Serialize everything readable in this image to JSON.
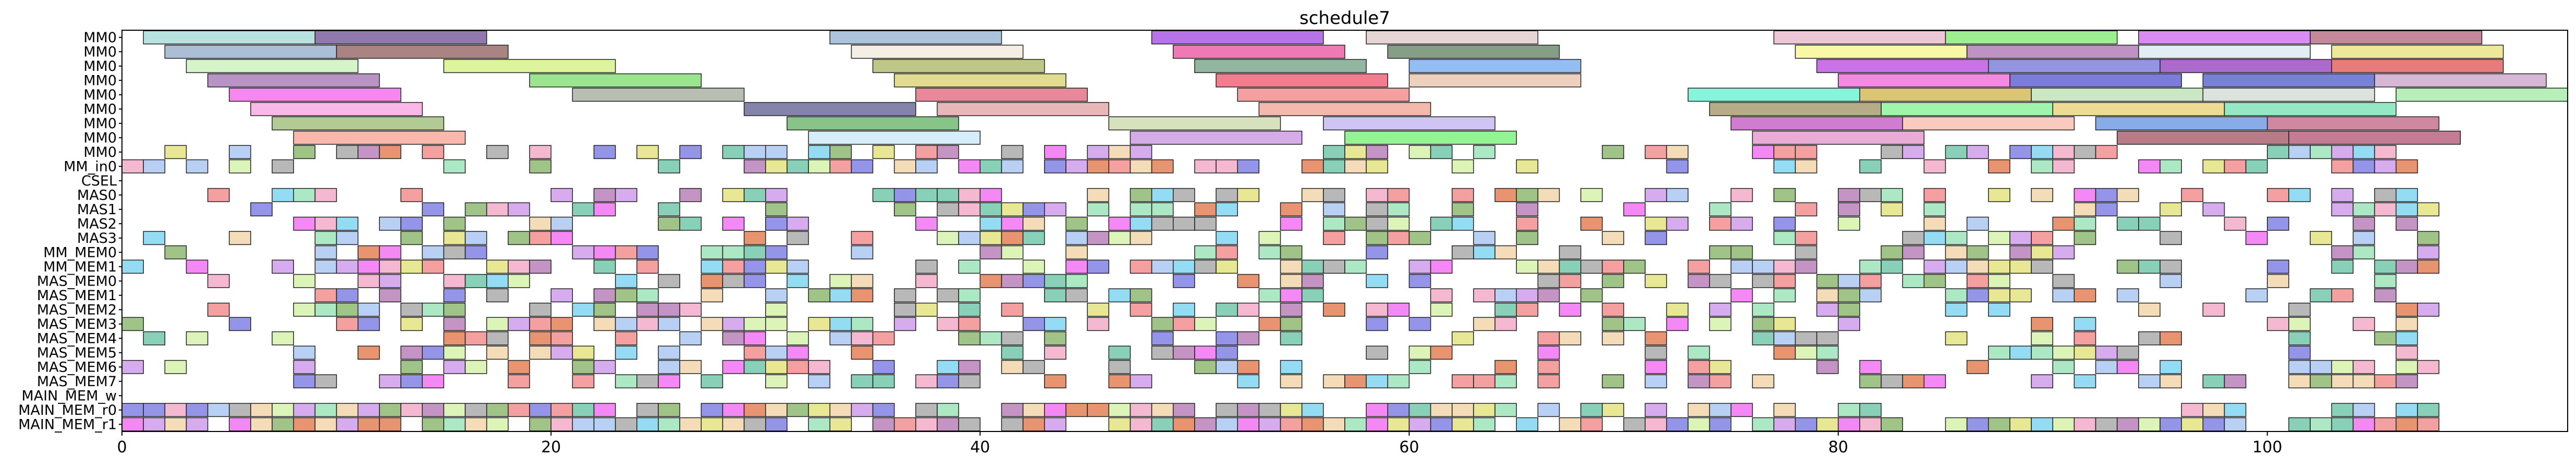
{
  "chart_data": {
    "type": "gantt",
    "title": "schedule7",
    "xlabel": "",
    "ylabel": "",
    "xlim": [
      0,
      114
    ],
    "xticks": [
      0,
      20,
      40,
      60,
      80,
      100
    ],
    "grid": false,
    "rows": [
      "MM0",
      "MM0",
      "MM0",
      "MM0",
      "MM0",
      "MM0",
      "MM0",
      "MM0",
      "MM0",
      "MM_in0",
      "CSEL",
      "MAS0",
      "MAS1",
      "MAS2",
      "MAS3",
      "MM_MEM0",
      "MM_MEM1",
      "MAS_MEM0",
      "MAS_MEM1",
      "MAS_MEM2",
      "MAS_MEM3",
      "MAS_MEM4",
      "MAS_MEM5",
      "MAS_MEM6",
      "MAS_MEM7",
      "MAIN_MEM_w",
      "MAIN_MEM_r0",
      "MAIN_MEM_r1"
    ],
    "long_tasks": [
      [
        [
          1,
          9,
          "#9fd8d4"
        ],
        [
          9,
          17,
          "#6b4e91"
        ],
        [
          33,
          41,
          "#8fb0d0"
        ],
        [
          48,
          56,
          "#9f45e0"
        ],
        [
          58,
          66,
          "#dcc7c7"
        ],
        [
          77,
          85,
          "#e8b4c8"
        ],
        [
          85,
          93,
          "#7ee86e"
        ],
        [
          94,
          102,
          "#cc66ee"
        ],
        [
          102,
          110,
          "#b0607a"
        ]
      ],
      [
        [
          2,
          10,
          "#8fa8c8"
        ],
        [
          10,
          18,
          "#8e5a5a"
        ],
        [
          34,
          42,
          "#f0e8dc"
        ],
        [
          49,
          57,
          "#e94c9c"
        ],
        [
          59,
          67,
          "#5e7d5e"
        ],
        [
          78,
          86,
          "#f5f58a"
        ],
        [
          86,
          94,
          "#a86fb0"
        ],
        [
          94,
          102,
          "#d8e8f0"
        ],
        [
          103,
          111,
          "#e8e07a"
        ]
      ],
      [
        [
          3,
          11,
          "#c8f0b8"
        ],
        [
          15,
          23,
          "#d0f07a"
        ],
        [
          35,
          43,
          "#a8b460"
        ],
        [
          50,
          58,
          "#6e9e80"
        ],
        [
          60,
          68,
          "#6ea8f0"
        ],
        [
          79,
          87,
          "#b844e0"
        ],
        [
          87,
          95,
          "#7070d8"
        ],
        [
          95,
          103,
          "#8e3abc"
        ],
        [
          103,
          111,
          "#e05050"
        ]
      ],
      [
        [
          4,
          12,
          "#a070b0"
        ],
        [
          19,
          27,
          "#7adc6a"
        ],
        [
          36,
          44,
          "#d8d06a"
        ],
        [
          51,
          59,
          "#f05068"
        ],
        [
          60,
          68,
          "#e8c0a8"
        ],
        [
          80,
          88,
          "#f060d8"
        ],
        [
          88,
          96,
          "#5050d0"
        ],
        [
          97,
          105,
          "#4a58c8"
        ],
        [
          105,
          113,
          "#c8a0c8"
        ]
      ],
      [
        [
          5,
          13,
          "#f060e8"
        ],
        [
          21,
          29,
          "#a0a898"
        ],
        [
          37,
          45,
          "#e0607a"
        ],
        [
          52,
          60,
          "#f08080"
        ],
        [
          73,
          81,
          "#60f0d0"
        ],
        [
          81,
          89,
          "#d0b048"
        ],
        [
          89,
          97,
          "#b8e0b0"
        ],
        [
          97,
          105,
          "#d0d8d0"
        ],
        [
          106,
          114,
          "#a0e8a0"
        ]
      ],
      [
        [
          6,
          14,
          "#f8a0e0"
        ],
        [
          29,
          37,
          "#5a5a90"
        ],
        [
          38,
          46,
          "#e0a0a0"
        ],
        [
          53,
          61,
          "#f0a090"
        ],
        [
          74,
          82,
          "#a09060"
        ],
        [
          82,
          90,
          "#80f090"
        ],
        [
          90,
          98,
          "#e8d070"
        ],
        [
          98,
          106,
          "#70e0b0"
        ]
      ],
      [
        [
          7,
          15,
          "#98b870"
        ],
        [
          31,
          39,
          "#60b060"
        ],
        [
          46,
          54,
          "#c8d8a8"
        ],
        [
          56,
          64,
          "#c0b0f0"
        ],
        [
          75,
          83,
          "#c050c0"
        ],
        [
          83,
          91,
          "#f8b8a8"
        ],
        [
          92,
          100,
          "#6090e0"
        ],
        [
          100,
          108,
          "#c06080"
        ]
      ],
      [
        [
          8,
          16,
          "#f8a090"
        ],
        [
          32,
          40,
          "#c8e8f8"
        ],
        [
          47,
          55,
          "#c890e0"
        ],
        [
          57,
          65,
          "#70f070"
        ],
        [
          76,
          84,
          "#e090c8"
        ],
        [
          93,
          101,
          "#a05060"
        ],
        [
          101,
          109,
          "#b05070"
        ]
      ]
    ],
    "short_row_colors": [
      "#f08080",
      "#90e0b0",
      "#7070e0",
      "#e0e070",
      "#c890e8",
      "#60c0a0",
      "#f0a0c0",
      "#a0a0a0",
      "#e07040",
      "#70d0f0",
      "#b070b0",
      "#f0d0a0",
      "#80b060",
      "#f060f0",
      "#a0c0f0",
      "#d0f0a0"
    ],
    "short_rows_seed": 7
  }
}
